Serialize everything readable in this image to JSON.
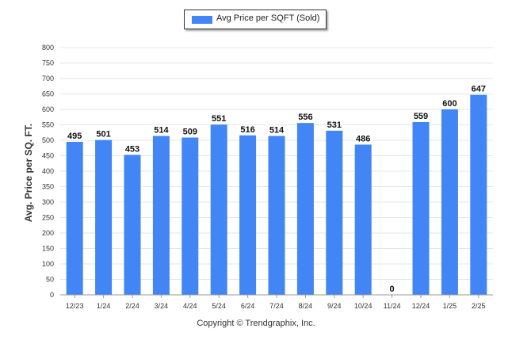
{
  "legend": {
    "label": "Avg Price per SQFT (Sold)"
  },
  "footer": {
    "text": "Copyright © Trendgraphix, Inc."
  },
  "colors": {
    "bar": "#4285f4",
    "grid": "#e6e6e6",
    "axis": "#999999"
  },
  "chart_data": {
    "type": "bar",
    "categories": [
      "12/23",
      "1/24",
      "2/24",
      "3/24",
      "4/24",
      "5/24",
      "6/24",
      "7/24",
      "8/24",
      "9/24",
      "10/24",
      "11/24",
      "12/24",
      "1/25",
      "2/25"
    ],
    "series": [
      {
        "name": "Avg Price per SQFT (Sold)",
        "values": [
          495,
          501,
          453,
          514,
          509,
          551,
          516,
          514,
          556,
          531,
          486,
          0,
          559,
          600,
          647
        ]
      }
    ],
    "ylabel": "Avg. Price per SQ. FT.",
    "ylim": [
      0,
      800
    ],
    "yticks": [
      0,
      50,
      100,
      150,
      200,
      250,
      300,
      350,
      400,
      450,
      500,
      550,
      600,
      650,
      700,
      750,
      800
    ],
    "grid": true,
    "data_labels": true,
    "legend_position": "top-center"
  }
}
